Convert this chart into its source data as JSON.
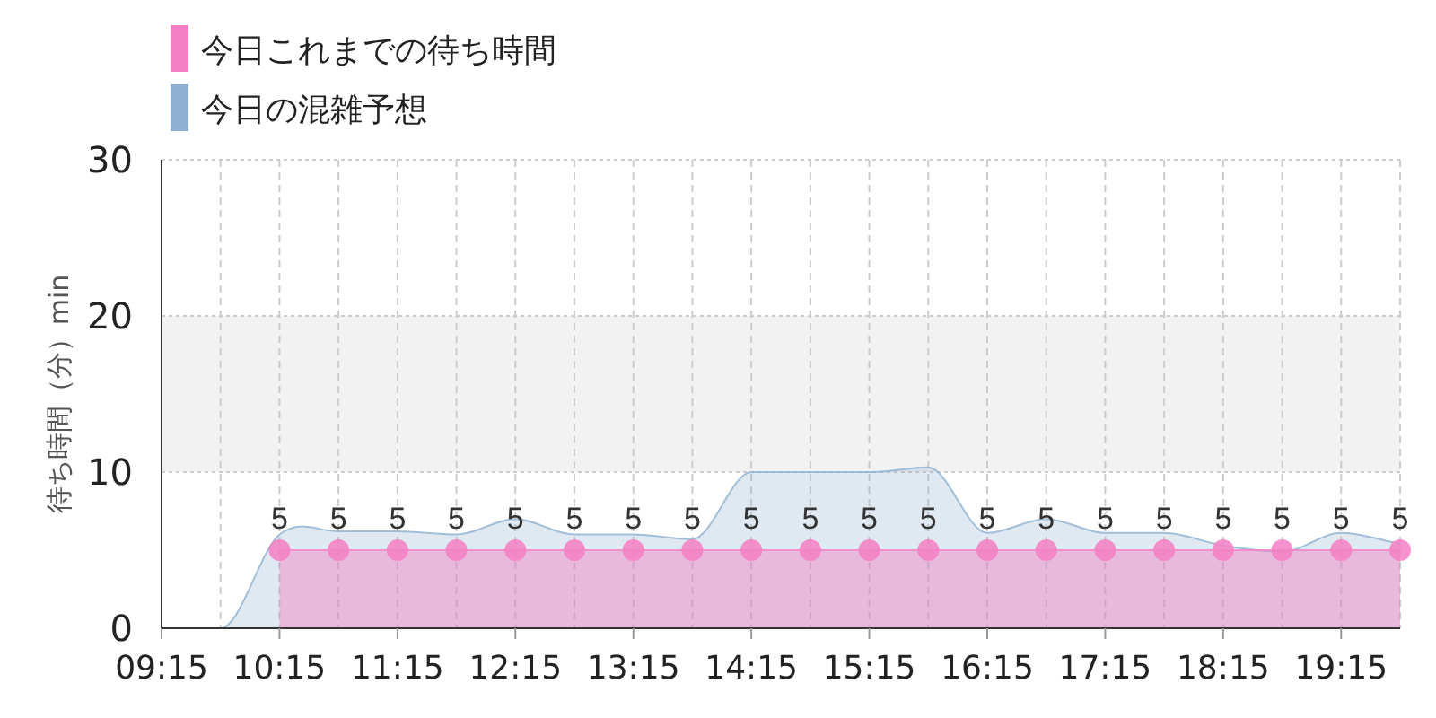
{
  "chart_data": {
    "type": "area",
    "ylabel": "待ち時間（分）min",
    "legend": "top left",
    "grid": true,
    "xlim": [
      9.25,
      19.75
    ],
    "ylim": [
      0,
      30
    ],
    "yticks": [
      0,
      10,
      20,
      30
    ],
    "xticks": [
      {
        "value": 9.25,
        "label": "09:15"
      },
      {
        "value": 9.75,
        "label": null
      },
      {
        "value": 10.25,
        "label": "10:15"
      },
      {
        "value": 10.75,
        "label": null
      },
      {
        "value": 11.25,
        "label": "11:15"
      },
      {
        "value": 11.75,
        "label": null
      },
      {
        "value": 12.25,
        "label": "12:15"
      },
      {
        "value": 12.75,
        "label": null
      },
      {
        "value": 13.25,
        "label": "13:15"
      },
      {
        "value": 13.75,
        "label": null
      },
      {
        "value": 14.25,
        "label": "14:15"
      },
      {
        "value": 14.75,
        "label": null
      },
      {
        "value": 15.25,
        "label": "15:15"
      },
      {
        "value": 15.75,
        "label": null
      },
      {
        "value": 16.25,
        "label": "16:15"
      },
      {
        "value": 16.75,
        "label": null
      },
      {
        "value": 17.25,
        "label": "17:15"
      },
      {
        "value": 17.75,
        "label": null
      },
      {
        "value": 18.25,
        "label": "18:15"
      },
      {
        "value": 18.75,
        "label": null
      },
      {
        "value": 19.25,
        "label": "19:15"
      },
      {
        "value": 19.75,
        "label": null
      }
    ],
    "bands": [
      {
        "axis": "y",
        "from": 10,
        "to": 20,
        "color": "#f2f2f2"
      }
    ],
    "series": [
      {
        "name": "今日これまでの待ち時間",
        "color": "#f47fc4",
        "marker": "circle",
        "x": [
          10.25,
          10.75,
          11.25,
          11.75,
          12.25,
          12.75,
          13.25,
          13.75,
          14.25,
          14.75,
          15.25,
          15.75,
          16.25,
          16.75,
          17.25,
          17.75,
          18.25,
          18.75,
          19.25,
          19.75
        ],
        "values": [
          5,
          5,
          5,
          5,
          5,
          5,
          5,
          5,
          5,
          5,
          5,
          5,
          5,
          5,
          5,
          5,
          5,
          5,
          5,
          5
        ],
        "value_labels": [
          "5",
          "5",
          "5",
          "5",
          "5",
          "5",
          "5",
          "5",
          "5",
          "5",
          "5",
          "5",
          "5",
          "5",
          "5",
          "5",
          "5",
          "5",
          "5",
          "5"
        ]
      },
      {
        "name": "今日の混雑予想",
        "color": "#8fb0d0",
        "x": [
          9.25,
          9.75,
          10.25,
          10.75,
          11.25,
          11.75,
          12.25,
          12.75,
          13.25,
          13.75,
          14.25,
          14.75,
          15.25,
          15.75,
          16.25,
          16.75,
          17.25,
          17.75,
          18.25,
          18.75,
          19.25,
          19.75
        ],
        "values": [
          0,
          0,
          6.0,
          6.2,
          6.2,
          6.0,
          7.0,
          6.0,
          6.0,
          5.7,
          10.0,
          10.0,
          10.0,
          10.3,
          6.1,
          7.0,
          6.1,
          6.1,
          5.3,
          4.9,
          6.1,
          5.4
        ]
      }
    ]
  }
}
